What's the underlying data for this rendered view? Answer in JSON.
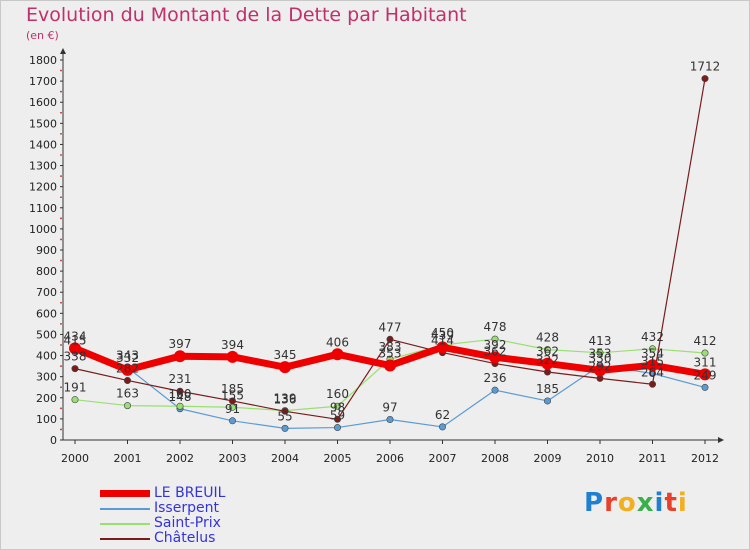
{
  "header": {
    "title": "Evolution du Montant de la Dette par Habitant",
    "unit": "(en €)"
  },
  "logo": {
    "text": "Proxiti",
    "letter_colors": [
      "#1f7fd0",
      "#e8402a",
      "#f2b01e",
      "#3ab04a",
      "#1f7fd0",
      "#e8402a",
      "#f2b01e"
    ]
  },
  "chart_data": {
    "type": "line",
    "title": "Evolution du Montant de la Dette par Habitant",
    "xlabel": "",
    "ylabel": "(en €)",
    "ylim": [
      0,
      1800
    ],
    "yticks": [
      0,
      100,
      200,
      300,
      400,
      500,
      600,
      700,
      800,
      900,
      1000,
      1100,
      1200,
      1300,
      1400,
      1500,
      1600,
      1700,
      1800
    ],
    "categories": [
      "2000",
      "2001",
      "2002",
      "2003",
      "2004",
      "2005",
      "2006",
      "2007",
      "2008",
      "2009",
      "2010",
      "2011",
      "2012"
    ],
    "grid": false,
    "legend_position": "bottom-left",
    "series": [
      {
        "name": "LE BREUIL",
        "color": "#ee0000",
        "width": 7,
        "marker": 6,
        "values": [
          434,
          332,
          397,
          394,
          345,
          406,
          353,
          439,
          392,
          362,
          330,
          354,
          311
        ]
      },
      {
        "name": "Isserpent",
        "color": "#5b9bd5",
        "width": 1.2,
        "marker": 3.2,
        "values": [
          415,
          343,
          148,
          91,
          55,
          59,
          97,
          62,
          236,
          185,
          353,
          315,
          249
        ]
      },
      {
        "name": "Saint-Prix",
        "color": "#99e070",
        "width": 1.2,
        "marker": 3.2,
        "values": [
          191,
          163,
          160,
          155,
          139,
          160,
          383,
          450,
          478,
          428,
          413,
          432,
          412
        ]
      },
      {
        "name": "Châtelus",
        "color": "#7a1c1c",
        "width": 1.2,
        "marker": 3.2,
        "values": [
          338,
          282,
          231,
          185,
          136,
          98,
          477,
          414,
          362,
          322,
          292,
          264,
          1712
        ]
      }
    ],
    "data_labels": [
      [
        "434",
        "332",
        "397",
        "394",
        "345",
        "406",
        "353",
        "439",
        "392",
        "362",
        "330",
        "354",
        "311"
      ],
      [
        "415",
        "343",
        "148",
        "91",
        "55",
        "59",
        "97",
        "62",
        "236",
        "185",
        "353",
        "315",
        "249"
      ],
      [
        "191",
        "163",
        "160",
        "155",
        "139",
        "160",
        "383",
        "450",
        "478",
        "428",
        "413",
        "432",
        "412"
      ],
      [
        "338",
        "282",
        "231",
        "185",
        "136",
        "98",
        "477",
        "414",
        "362",
        "322",
        "292",
        "264",
        "1712"
      ]
    ]
  }
}
